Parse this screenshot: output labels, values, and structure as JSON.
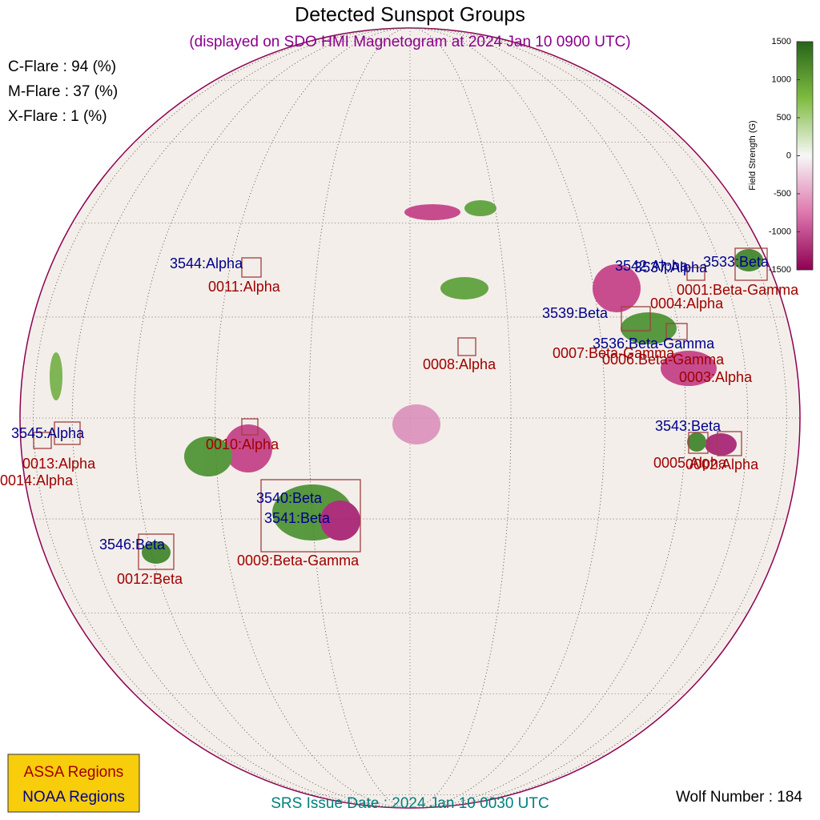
{
  "header": {
    "title": "Detected Sunspot Groups",
    "subtitle": "(displayed on SDO HMI Magnetogram at 2024 Jan 10 0900 UTC)"
  },
  "flare_probabilities": [
    "C-Flare : 94 (%)",
    "M-Flare : 37 (%)",
    "X-Flare :  1 (%)"
  ],
  "colorbar": {
    "label": "Field Strength (G)",
    "lim": [
      -1500,
      1500
    ],
    "ticks": [
      1500,
      1000,
      500,
      0,
      -500,
      -1000,
      -1500
    ]
  },
  "noaa_regions": [
    "3544:Alpha",
    "3542:Alpha",
    "3537:Alpha",
    "3533:Beta",
    "3539:Beta",
    "3536:Beta-Gamma",
    "3543:Beta",
    "3545:Alpha",
    "3540:Beta",
    "3541:Beta",
    "3546:Beta"
  ],
  "assa_regions": [
    "0011:Alpha",
    "0001:Beta-Gamma",
    "0004:Alpha",
    "0008:Alpha",
    "0007:Beta-Gamma",
    "0006:Beta-Gamma",
    "0003:Alpha",
    "0010:Alpha",
    "0013:Alpha",
    "0014:Alpha",
    "0005:Alpha",
    "0002:Alpha",
    "0009:Beta-Gamma",
    "0012:Beta"
  ],
  "legend": [
    "ASSA Regions",
    "NOAA Regions"
  ],
  "footer": {
    "issue_date": "SRS Issue Date : 2024 Jan 10 0030 UTC",
    "wolf_number": "Wolf Number : 184"
  }
}
